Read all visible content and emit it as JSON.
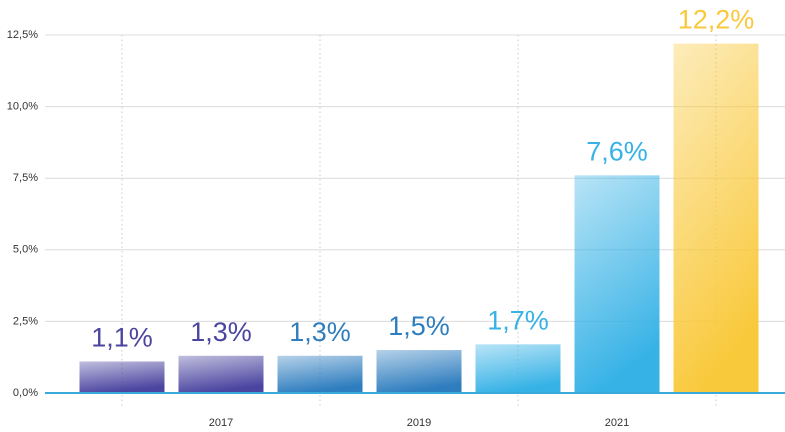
{
  "chart_data": {
    "type": "bar",
    "categories": [
      null,
      "2017",
      null,
      "2019",
      null,
      "2021",
      null
    ],
    "values": [
      1.1,
      1.3,
      1.3,
      1.5,
      1.7,
      7.6,
      12.2
    ],
    "value_labels": [
      "1,1%",
      "1,3%",
      "1,3%",
      "1,5%",
      "1,7%",
      "7,6%",
      "12,2%"
    ],
    "colors": [
      "#4b45a0",
      "#4b45a0",
      "#2e7dbf",
      "#2e7dbf",
      "#36b2e6",
      "#36b2e6",
      "#f9c93c"
    ],
    "ylim": [
      0,
      12.5
    ],
    "yticks": [
      {
        "value": 0,
        "label": "0,0%"
      },
      {
        "value": 2.5,
        "label": "2,5%"
      },
      {
        "value": 5,
        "label": "5,0%"
      },
      {
        "value": 7.5,
        "label": "7,5%"
      },
      {
        "value": 10,
        "label": "10,0%"
      },
      {
        "value": 12.5,
        "label": "12,5%"
      }
    ],
    "grid": true
  }
}
